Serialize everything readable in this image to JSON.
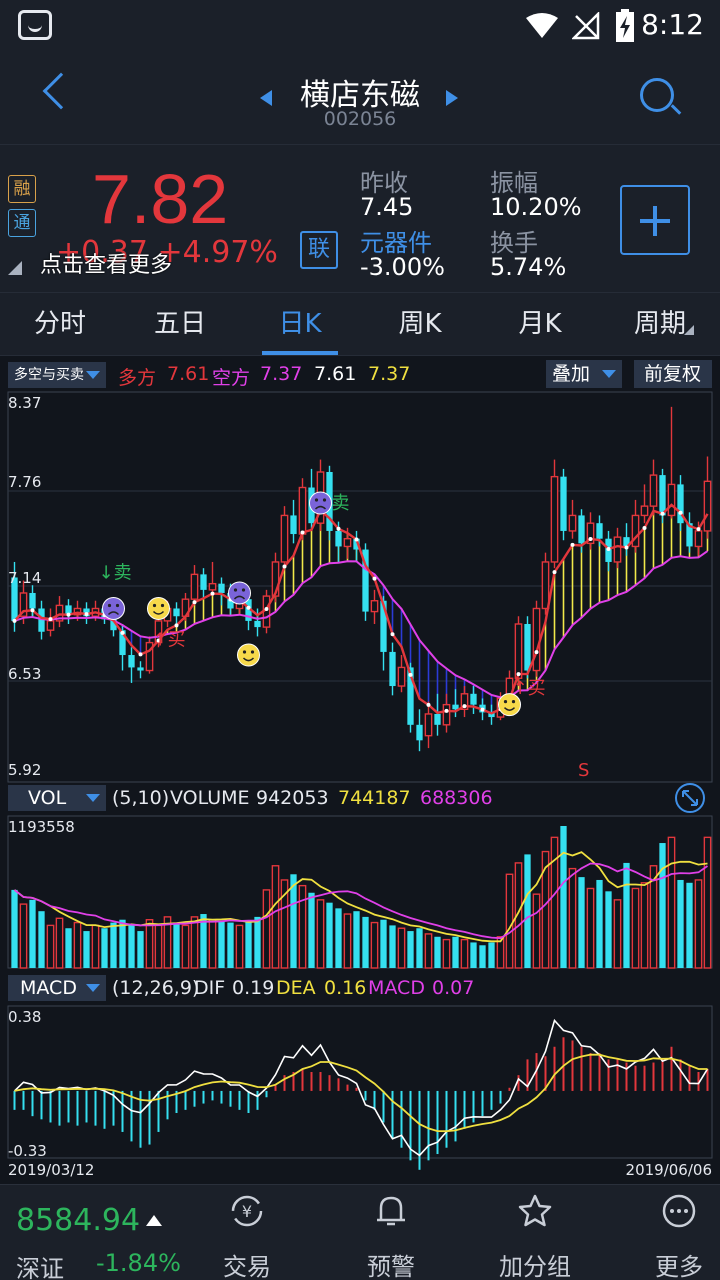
{
  "status_bar": {
    "time": "8:12"
  },
  "header": {
    "stock_name": "横店东磁",
    "stock_code": "002056"
  },
  "quote": {
    "tag_rong": "融",
    "tag_tong": "通",
    "price": "7.82",
    "change": "+0.37  +4.97%",
    "hint": "点击查看更多",
    "lian_label": "联",
    "prev_close_label": "昨收",
    "prev_close": "7.45",
    "sector_label": "元器件",
    "sector_change": "-3.00%",
    "amplitude_label": "振幅",
    "amplitude": "10.20%",
    "turnover_label": "换手",
    "turnover": "5.74%"
  },
  "tabs": [
    "分时",
    "五日",
    "日K",
    "周K",
    "月K",
    "周期"
  ],
  "active_tab": "日K",
  "colors": {
    "up": "#e3373c",
    "down": "#35e0f0",
    "accent": "#3f8fe6",
    "green": "#2db55d"
  },
  "main_chart": {
    "indicator_select": "多空与买卖",
    "bull_label": "多方",
    "bull_value": "7.61",
    "bear_label": "空方",
    "bear_value": "7.37",
    "extra_value_1": "7.61",
    "extra_value_2": "7.37",
    "overlay_button": "叠加",
    "adjust_button": "前复权",
    "y_ticks": [
      "8.37",
      "7.76",
      "7.14",
      "6.53",
      "5.92"
    ],
    "signal_sell": "卖",
    "signal_buy": "买",
    "marker_s": "S"
  },
  "volume": {
    "indicator_select": "VOL",
    "params": "(5,10)",
    "name": "VOLUME",
    "value": "942053",
    "ma5": "744187",
    "ma10": "688306",
    "max_label": "1193558"
  },
  "macd": {
    "indicator_select": "MACD",
    "params": "(12,26,9)",
    "dif_label": "DIF",
    "dif": "0.19",
    "dea_label": "DEA",
    "dea": "0.16",
    "macd_label": "MACD",
    "macd": "0.07",
    "top_label": "0.38",
    "bottom_label": "-0.33",
    "start_date": "2019/03/12",
    "end_date": "2019/06/06"
  },
  "bottom_nav": {
    "index_value": "8584.94",
    "index_name": "深证",
    "index_change": "-1.84%",
    "items": [
      "交易",
      "预警",
      "加分组",
      "更多"
    ]
  },
  "chart_data": {
    "type": "candlestick",
    "ylim": [
      5.92,
      8.37
    ],
    "x_range": [
      "2019/03/12",
      "2019/06/06"
    ],
    "bull_line_last": 7.61,
    "bear_line_last": 7.37,
    "candles": [
      {
        "o": 7.2,
        "c": 6.92,
        "h": 7.3,
        "l": 6.85
      },
      {
        "o": 6.95,
        "c": 7.1,
        "h": 7.18,
        "l": 6.9
      },
      {
        "o": 7.1,
        "c": 7.0,
        "h": 7.15,
        "l": 6.95
      },
      {
        "o": 7.0,
        "c": 6.85,
        "h": 7.05,
        "l": 6.8
      },
      {
        "o": 6.86,
        "c": 6.92,
        "h": 7.0,
        "l": 6.82
      },
      {
        "o": 6.92,
        "c": 7.02,
        "h": 7.08,
        "l": 6.88
      },
      {
        "o": 7.02,
        "c": 6.96,
        "h": 7.06,
        "l": 6.9
      },
      {
        "o": 6.96,
        "c": 7.0,
        "h": 7.05,
        "l": 6.92
      },
      {
        "o": 7.0,
        "c": 6.95,
        "h": 7.04,
        "l": 6.9
      },
      {
        "o": 6.95,
        "c": 7.0,
        "h": 7.05,
        "l": 6.92
      },
      {
        "o": 7.0,
        "c": 6.93,
        "h": 7.03,
        "l": 6.9
      },
      {
        "o": 6.93,
        "c": 6.86,
        "h": 6.98,
        "l": 6.82
      },
      {
        "o": 6.86,
        "c": 6.7,
        "h": 6.9,
        "l": 6.6
      },
      {
        "o": 6.7,
        "c": 6.62,
        "h": 6.75,
        "l": 6.52
      },
      {
        "o": 6.62,
        "c": 6.6,
        "h": 6.66,
        "l": 6.55
      },
      {
        "o": 6.6,
        "c": 6.78,
        "h": 6.82,
        "l": 6.58
      },
      {
        "o": 6.78,
        "c": 6.92,
        "h": 6.98,
        "l": 6.75
      },
      {
        "o": 6.92,
        "c": 7.0,
        "h": 7.05,
        "l": 6.88
      },
      {
        "o": 7.0,
        "c": 6.95,
        "h": 7.04,
        "l": 6.9
      },
      {
        "o": 6.95,
        "c": 7.06,
        "h": 7.1,
        "l": 6.92
      },
      {
        "o": 7.06,
        "c": 7.22,
        "h": 7.28,
        "l": 7.02
      },
      {
        "o": 7.22,
        "c": 7.12,
        "h": 7.26,
        "l": 7.06
      },
      {
        "o": 7.12,
        "c": 7.16,
        "h": 7.3,
        "l": 7.08
      },
      {
        "o": 7.16,
        "c": 7.1,
        "h": 7.2,
        "l": 7.02
      },
      {
        "o": 7.1,
        "c": 7.0,
        "h": 7.16,
        "l": 6.96
      },
      {
        "o": 7.0,
        "c": 7.06,
        "h": 7.12,
        "l": 6.96
      },
      {
        "o": 7.06,
        "c": 6.92,
        "h": 7.1,
        "l": 6.86
      },
      {
        "o": 6.92,
        "c": 6.88,
        "h": 7.0,
        "l": 6.82
      },
      {
        "o": 6.88,
        "c": 7.08,
        "h": 7.12,
        "l": 6.84
      },
      {
        "o": 7.08,
        "c": 7.3,
        "h": 7.36,
        "l": 7.04
      },
      {
        "o": 7.3,
        "c": 7.6,
        "h": 7.66,
        "l": 7.26
      },
      {
        "o": 7.6,
        "c": 7.48,
        "h": 7.7,
        "l": 7.42
      },
      {
        "o": 7.48,
        "c": 7.78,
        "h": 7.84,
        "l": 7.44
      },
      {
        "o": 7.78,
        "c": 7.55,
        "h": 7.9,
        "l": 7.5
      },
      {
        "o": 7.55,
        "c": 7.88,
        "h": 7.96,
        "l": 7.5
      },
      {
        "o": 7.88,
        "c": 7.5,
        "h": 7.92,
        "l": 7.44
      },
      {
        "o": 7.5,
        "c": 7.4,
        "h": 7.56,
        "l": 7.3
      },
      {
        "o": 7.4,
        "c": 7.45,
        "h": 7.52,
        "l": 7.32
      },
      {
        "o": 7.45,
        "c": 7.38,
        "h": 7.5,
        "l": 7.3
      },
      {
        "o": 7.38,
        "c": 6.98,
        "h": 7.42,
        "l": 6.92
      },
      {
        "o": 6.98,
        "c": 7.05,
        "h": 7.12,
        "l": 6.9
      },
      {
        "o": 7.05,
        "c": 6.72,
        "h": 7.08,
        "l": 6.6
      },
      {
        "o": 6.72,
        "c": 6.5,
        "h": 6.78,
        "l": 6.44
      },
      {
        "o": 6.5,
        "c": 6.62,
        "h": 6.7,
        "l": 6.46
      },
      {
        "o": 6.62,
        "c": 6.25,
        "h": 6.65,
        "l": 6.2
      },
      {
        "o": 6.25,
        "c": 6.15,
        "h": 6.35,
        "l": 6.08
      },
      {
        "o": 6.18,
        "c": 6.32,
        "h": 6.4,
        "l": 6.1
      },
      {
        "o": 6.32,
        "c": 6.25,
        "h": 6.45,
        "l": 6.18
      },
      {
        "o": 6.25,
        "c": 6.38,
        "h": 6.45,
        "l": 6.2
      },
      {
        "o": 6.38,
        "c": 6.35,
        "h": 6.48,
        "l": 6.3
      },
      {
        "o": 6.35,
        "c": 6.45,
        "h": 6.5,
        "l": 6.3
      },
      {
        "o": 6.45,
        "c": 6.38,
        "h": 6.5,
        "l": 6.32
      },
      {
        "o": 6.38,
        "c": 6.33,
        "h": 6.42,
        "l": 6.28
      },
      {
        "o": 6.33,
        "c": 6.3,
        "h": 6.38,
        "l": 6.25
      },
      {
        "o": 6.3,
        "c": 6.42,
        "h": 6.46,
        "l": 6.28
      },
      {
        "o": 6.42,
        "c": 6.55,
        "h": 6.6,
        "l": 6.38
      },
      {
        "o": 6.55,
        "c": 6.9,
        "h": 6.95,
        "l": 6.5
      },
      {
        "o": 6.9,
        "c": 6.6,
        "h": 6.95,
        "l": 6.55
      },
      {
        "o": 6.6,
        "c": 7.0,
        "h": 7.05,
        "l": 6.56
      },
      {
        "o": 7.0,
        "c": 7.3,
        "h": 7.36,
        "l": 6.96
      },
      {
        "o": 7.3,
        "c": 7.85,
        "h": 7.96,
        "l": 7.26
      },
      {
        "o": 7.85,
        "c": 7.5,
        "h": 7.9,
        "l": 7.44
      },
      {
        "o": 7.5,
        "c": 7.6,
        "h": 7.7,
        "l": 7.45
      },
      {
        "o": 7.6,
        "c": 7.42,
        "h": 7.64,
        "l": 7.36
      },
      {
        "o": 7.42,
        "c": 7.55,
        "h": 7.62,
        "l": 7.38
      },
      {
        "o": 7.55,
        "c": 7.45,
        "h": 7.6,
        "l": 7.4
      },
      {
        "o": 7.45,
        "c": 7.3,
        "h": 7.5,
        "l": 7.24
      },
      {
        "o": 7.3,
        "c": 7.46,
        "h": 7.52,
        "l": 7.26
      },
      {
        "o": 7.46,
        "c": 7.4,
        "h": 7.55,
        "l": 7.34
      },
      {
        "o": 7.4,
        "c": 7.6,
        "h": 7.7,
        "l": 7.36
      },
      {
        "o": 7.6,
        "c": 7.66,
        "h": 7.8,
        "l": 7.55
      },
      {
        "o": 7.66,
        "c": 7.86,
        "h": 7.96,
        "l": 7.6
      },
      {
        "o": 7.86,
        "c": 7.6,
        "h": 7.9,
        "l": 7.55
      },
      {
        "o": 7.6,
        "c": 7.8,
        "h": 8.3,
        "l": 7.58
      },
      {
        "o": 7.8,
        "c": 7.55,
        "h": 7.86,
        "l": 7.5
      },
      {
        "o": 7.55,
        "c": 7.4,
        "h": 7.62,
        "l": 7.36
      },
      {
        "o": 7.4,
        "c": 7.5,
        "h": 7.56,
        "l": 7.34
      },
      {
        "o": 7.5,
        "c": 7.82,
        "h": 7.98,
        "l": 7.45
      }
    ],
    "volumes": [
      0.55,
      0.45,
      0.48,
      0.4,
      0.3,
      0.35,
      0.28,
      0.32,
      0.26,
      0.3,
      0.28,
      0.32,
      0.34,
      0.3,
      0.26,
      0.34,
      0.3,
      0.36,
      0.32,
      0.3,
      0.36,
      0.38,
      0.34,
      0.33,
      0.32,
      0.3,
      0.33,
      0.36,
      0.55,
      0.72,
      0.62,
      0.66,
      0.58,
      0.53,
      0.48,
      0.46,
      0.42,
      0.38,
      0.4,
      0.36,
      0.32,
      0.34,
      0.3,
      0.28,
      0.26,
      0.28,
      0.24,
      0.22,
      0.2,
      0.22,
      0.2,
      0.18,
      0.16,
      0.18,
      0.22,
      0.66,
      0.74,
      0.8,
      0.52,
      0.82,
      0.92,
      1.0,
      0.7,
      0.64,
      0.56,
      0.62,
      0.54,
      0.48,
      0.74,
      0.56,
      0.6,
      0.72,
      0.88,
      0.92,
      0.62,
      0.6,
      0.62,
      0.92
    ],
    "macd_hist": [
      -0.06,
      -0.06,
      -0.08,
      -0.09,
      -0.1,
      -0.11,
      -0.1,
      -0.11,
      -0.1,
      -0.11,
      -0.12,
      -0.11,
      -0.13,
      -0.16,
      -0.18,
      -0.17,
      -0.13,
      -0.09,
      -0.07,
      -0.06,
      -0.05,
      -0.04,
      -0.03,
      -0.04,
      -0.05,
      -0.06,
      -0.07,
      -0.06,
      -0.02,
      0.02,
      0.05,
      0.06,
      0.07,
      0.06,
      0.06,
      0.05,
      0.04,
      0.02,
      0.01,
      -0.03,
      -0.06,
      -0.1,
      -0.15,
      -0.18,
      -0.22,
      -0.25,
      -0.22,
      -0.2,
      -0.18,
      -0.16,
      -0.12,
      -0.1,
      -0.08,
      -0.06,
      -0.04,
      0.01,
      0.05,
      0.1,
      0.12,
      0.11,
      0.14,
      0.17,
      0.16,
      0.14,
      0.12,
      0.12,
      0.1,
      0.1,
      0.09,
      0.08,
      0.08,
      0.09,
      0.1,
      0.14,
      0.1,
      0.08,
      0.06,
      0.07
    ]
  }
}
